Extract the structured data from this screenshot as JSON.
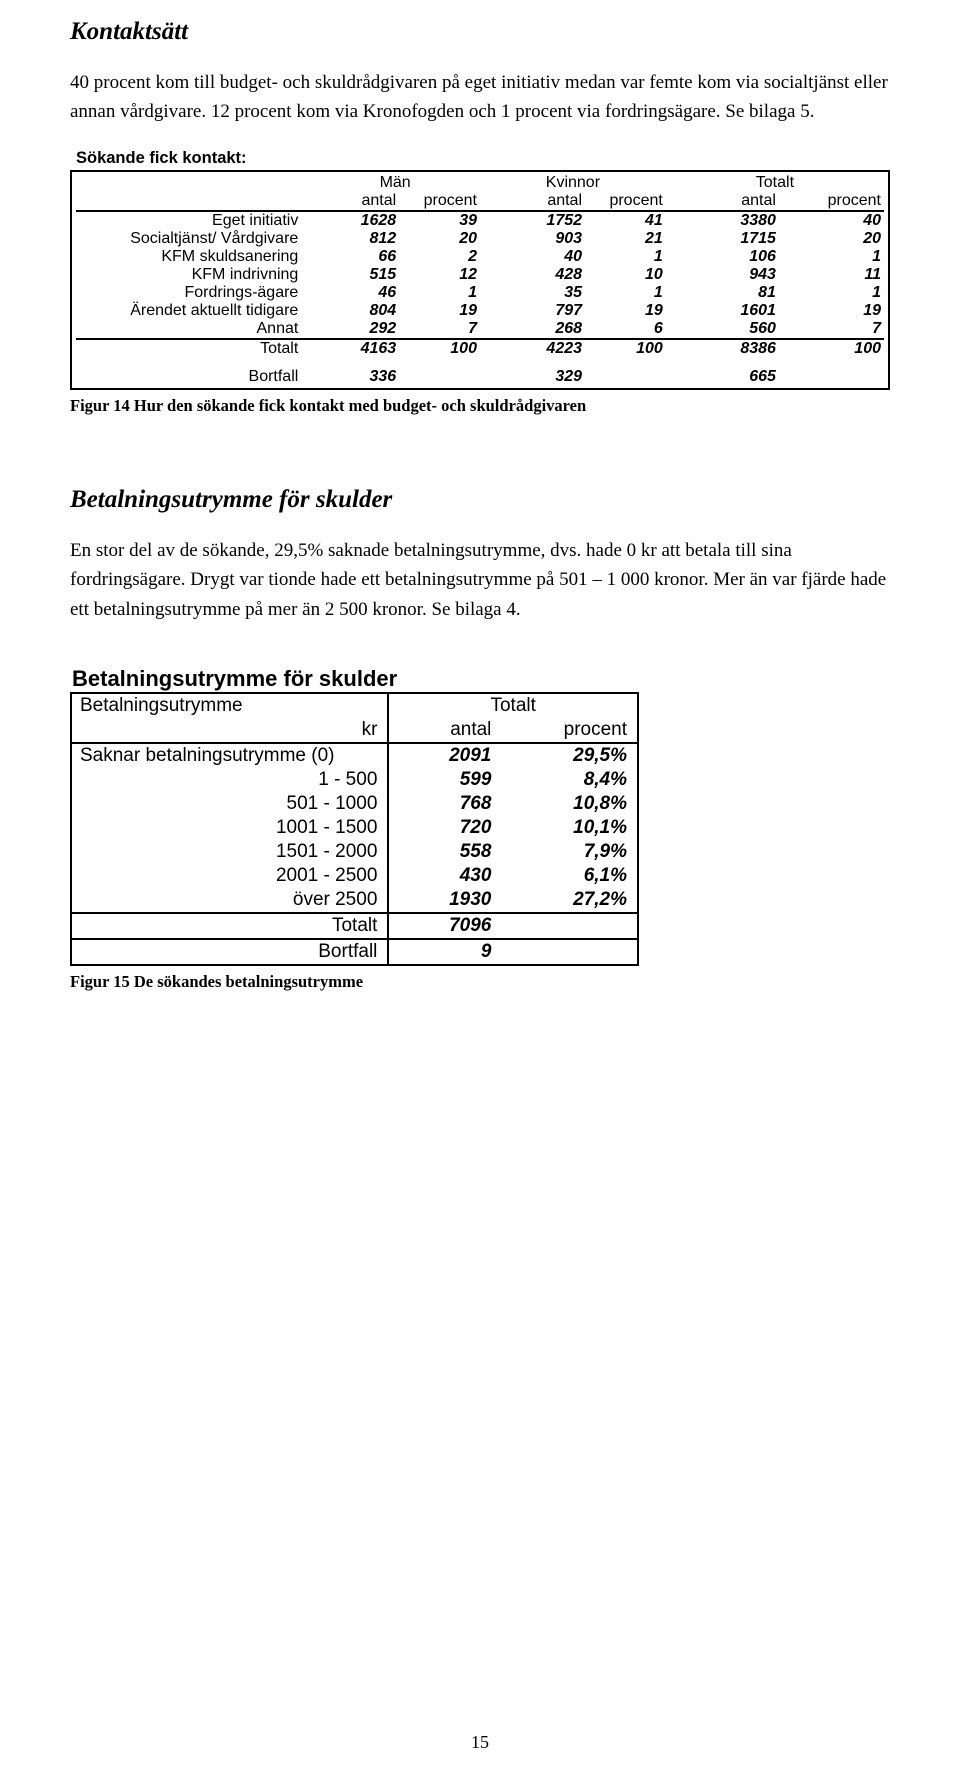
{
  "h1_kontaktsatt": "Kontaktsätt",
  "para1": "40 procent kom till budget- och skuldrådgivaren på eget initiativ medan var femte kom via socialtjänst eller annan vårdgivare. 12 procent kom via Kronofogden och 1 procent via fordringsägare. Se bilaga 5.",
  "contact_table": {
    "title": "Sökande fick kontakt:",
    "groups": [
      "Män",
      "Kvinnor",
      "Totalt"
    ],
    "subcols": [
      "antal",
      "procent"
    ],
    "rows": [
      {
        "label": "Eget initiativ",
        "vals": [
          "1628",
          "39",
          "1752",
          "41",
          "3380",
          "40"
        ]
      },
      {
        "label": "Socialtjänst/ Vårdgivare",
        "vals": [
          "812",
          "20",
          "903",
          "21",
          "1715",
          "20"
        ]
      },
      {
        "label": "KFM skuldsanering",
        "vals": [
          "66",
          "2",
          "40",
          "1",
          "106",
          "1"
        ]
      },
      {
        "label": "KFM indrivning",
        "vals": [
          "515",
          "12",
          "428",
          "10",
          "943",
          "11"
        ]
      },
      {
        "label": "Fordrings-ägare",
        "vals": [
          "46",
          "1",
          "35",
          "1",
          "81",
          "1"
        ]
      },
      {
        "label": "Ärendet aktuellt tidigare",
        "vals": [
          "804",
          "19",
          "797",
          "19",
          "1601",
          "19"
        ]
      },
      {
        "label": "Annat",
        "vals": [
          "292",
          "7",
          "268",
          "6",
          "560",
          "7"
        ]
      }
    ],
    "total_row": {
      "label": "Totalt",
      "vals": [
        "4163",
        "100",
        "4223",
        "100",
        "8386",
        "100"
      ]
    },
    "bortfall_row": {
      "label": "Bortfall",
      "vals": [
        "336",
        "",
        "329",
        "",
        "665",
        ""
      ]
    }
  },
  "fig14_caption": "Figur 14 Hur den sökande fick kontakt med budget- och skuldrådgivaren",
  "h2_betalnings": "Betalningsutrymme för skulder",
  "para2": "En stor del av de sökande, 29,5% saknade betalningsutrymme, dvs. hade 0 kr att betala till sina fordringsägare. Drygt var tionde hade ett betalningsutrymme på 501 – 1 000 kronor. Mer än var fjärde hade ett betalningsutrymme på mer än 2 500 kronor. Se bilaga 4.",
  "pay_table": {
    "title": "Betalningsutrymme för skulder",
    "head_row1": [
      "Betalningsutrymme",
      "Totalt"
    ],
    "head_row2": [
      "kr",
      "antal",
      "procent"
    ],
    "rows": [
      {
        "label": "Saknar betalningsutrymme (0)",
        "antal": "2091",
        "procent": "29,5%"
      },
      {
        "label": "1 - 500",
        "antal": "599",
        "procent": "8,4%"
      },
      {
        "label": "501 - 1000",
        "antal": "768",
        "procent": "10,8%"
      },
      {
        "label": "1001 - 1500",
        "antal": "720",
        "procent": "10,1%"
      },
      {
        "label": "1501 - 2000",
        "antal": "558",
        "procent": "7,9%"
      },
      {
        "label": "2001 - 2500",
        "antal": "430",
        "procent": "6,1%"
      },
      {
        "label": "över 2500",
        "antal": "1930",
        "procent": "27,2%"
      }
    ],
    "totalt": {
      "label": "Totalt",
      "antal": "7096",
      "procent": ""
    },
    "bortfall": {
      "label": "Bortfall",
      "antal": "9",
      "procent": ""
    }
  },
  "fig15_caption": "Figur 15 De sökandes betalningsutrymme",
  "page_number": "15",
  "colors": {
    "text": "#000000",
    "border": "#000000",
    "bg": "#ffffff"
  }
}
